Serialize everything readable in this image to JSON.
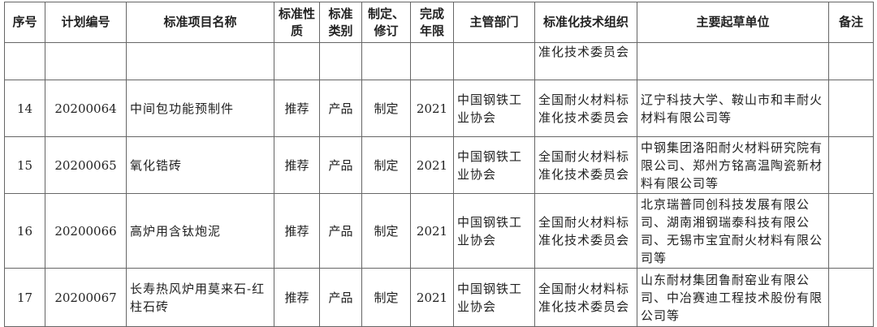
{
  "headers": [
    "序号",
    "计划编号",
    "标准项目名称",
    "标准性质",
    "标准类别",
    "制定、修订",
    "完成年限",
    "主管部门",
    "标准化技术组织",
    "主要起草单位",
    "备注"
  ],
  "continuation": {
    "org": "准化技术委员会"
  },
  "rows": [
    {
      "no": "14",
      "plan": "20200064",
      "name": "中间包功能预制件",
      "nature": "推荐",
      "category": "产品",
      "type": "制定",
      "year": "2021",
      "dept": "中国钢铁工业协会",
      "org": "全国耐火材料标准化技术委员会",
      "drafter": "辽宁科技大学、鞍山市和丰耐火材料有限公司等",
      "note": ""
    },
    {
      "no": "15",
      "plan": "20200065",
      "name": "氧化锆砖",
      "nature": "推荐",
      "category": "产品",
      "type": "制定",
      "year": "2021",
      "dept": "中国钢铁工业协会",
      "org": "全国耐火材料标准化技术委员会",
      "drafter": "中钢集团洛阳耐火材料研究院有限公司、郑州方铭高温陶瓷新材料有限公司等",
      "note": ""
    },
    {
      "no": "16",
      "plan": "20200066",
      "name": "高炉用含钛炮泥",
      "nature": "推荐",
      "category": "产品",
      "type": "制定",
      "year": "2021",
      "dept": "中国钢铁工业协会",
      "org": "全国耐火材料标准化技术委员会",
      "drafter": "北京瑞普同创科技发展有限公司、湖南湘钢瑞泰科技有限公司、无锡市宝宜耐火材料有限公司等",
      "note": ""
    },
    {
      "no": "17",
      "plan": "20200067",
      "name": "长寿热风炉用莫来石-红柱石砖",
      "nature": "推荐",
      "category": "产品",
      "type": "制定",
      "year": "2021",
      "dept": "中国钢铁工业协会",
      "org": "全国耐火材料标准化技术委员会",
      "drafter": "山东耐材集团鲁耐窑业有限公司、中冶赛迪工程技术股份有限公司等",
      "note": ""
    }
  ]
}
